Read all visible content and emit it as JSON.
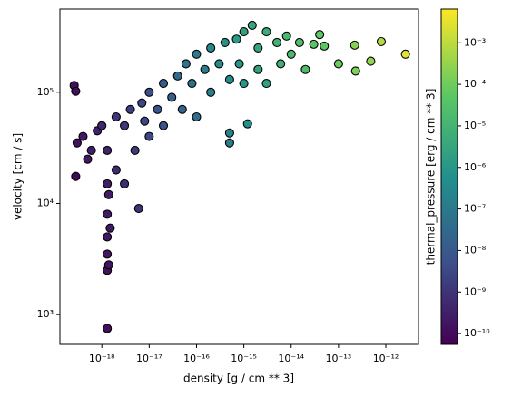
{
  "chart_data": {
    "type": "scatter",
    "xlabel": "density [g / cm ** 3]",
    "ylabel": "velocity [cm / s]",
    "xscale": "log",
    "yscale": "log",
    "xlim": [
      1.3e-19,
      4.9e-12
    ],
    "ylim": [
      540,
      560000.0
    ],
    "xticks": [
      {
        "value": 1e-18,
        "label": "10⁻¹⁸"
      },
      {
        "value": 1e-17,
        "label": "10⁻¹⁷"
      },
      {
        "value": 1e-16,
        "label": "10⁻¹⁶"
      },
      {
        "value": 1e-15,
        "label": "10⁻¹⁵"
      },
      {
        "value": 1e-14,
        "label": "10⁻¹⁴"
      },
      {
        "value": 1e-13,
        "label": "10⁻¹³"
      },
      {
        "value": 1e-12,
        "label": "10⁻¹²"
      }
    ],
    "yticks": [
      {
        "value": 1000,
        "label": "10³"
      },
      {
        "value": 10000,
        "label": "10⁴"
      },
      {
        "value": 100000,
        "label": "10⁵"
      }
    ],
    "marker_edge_color": "#000000",
    "x": [
      2.6e-19,
      2.8e-19,
      2.8e-19,
      3e-19,
      4e-19,
      5e-19,
      6e-19,
      8e-19,
      1e-18,
      1.3e-18,
      1.3e-18,
      1.3e-18,
      1.3e-18,
      1.3e-18,
      1.3e-18,
      1.3e-18,
      1.4e-18,
      1.4e-18,
      1.5e-18,
      2e-18,
      2e-18,
      3e-18,
      3e-18,
      4e-18,
      5e-18,
      6e-18,
      7e-18,
      8e-18,
      1e-17,
      1e-17,
      1.5e-17,
      2e-17,
      2e-17,
      3e-17,
      4e-17,
      5e-17,
      6e-17,
      8e-17,
      1e-16,
      1e-16,
      1.5e-16,
      2e-16,
      2e-16,
      3e-16,
      4e-16,
      5e-16,
      5e-16,
      5e-16,
      7e-16,
      8e-16,
      1e-15,
      1e-15,
      1.2e-15,
      1.5e-15,
      2e-15,
      2e-15,
      3e-15,
      3e-15,
      5e-15,
      6e-15,
      8e-15,
      1e-14,
      1.5e-14,
      2e-14,
      3e-14,
      4e-14,
      5e-14,
      1e-13,
      2.2e-13,
      2.3e-13,
      4.8e-13,
      8e-13,
      2.6e-12
    ],
    "y": [
      115000,
      102000,
      17500,
      35000,
      40000,
      25000,
      30000,
      45000,
      50000,
      30000,
      15000,
      8000,
      5000,
      3500,
      2500,
      750,
      2800,
      12000,
      6000,
      60000,
      20000,
      50000,
      15000,
      70000,
      30000,
      9000,
      80000,
      55000,
      100000,
      40000,
      70000,
      120000,
      50000,
      90000,
      140000,
      70000,
      180000,
      120000,
      220000,
      60000,
      160000,
      250000,
      100000,
      180000,
      280000,
      130000,
      35000,
      43000,
      300000,
      180000,
      350000,
      120000,
      52000,
      400000,
      250000,
      160000,
      350000,
      120000,
      280000,
      180000,
      320000,
      220000,
      280000,
      160000,
      270000,
      330000,
      260000,
      180000,
      265000,
      155000,
      190000,
      285000,
      220000
    ],
    "c": [
      1.2e-10,
      1.2e-10,
      1e-10,
      1.5e-10,
      2e-10,
      2e-10,
      3e-10,
      4e-10,
      5e-10,
      4e-10,
      3e-10,
      2.5e-10,
      2e-10,
      1.8e-10,
      1.5e-10,
      1.2e-10,
      1.6e-10,
      3e-10,
      2.2e-10,
      1e-09,
      6e-10,
      1.2e-09,
      7e-10,
      1.8e-09,
      1.5e-09,
      1e-09,
      3e-09,
      3e-09,
      5e-09,
      3e-09,
      6e-09,
      1e-08,
      6e-09,
      1.5e-08,
      3e-08,
      2e-08,
      6e-08,
      5e-08,
      1.2e-07,
      4e-08,
      1.5e-07,
      3e-07,
      1.5e-07,
      4e-07,
      7e-07,
      4e-07,
      1.5e-07,
      2e-07,
      1.2e-06,
      8e-07,
      2e-06,
      1e-06,
      6e-07,
      3e-06,
      3e-06,
      2e-06,
      5e-06,
      2e-06,
      8e-06,
      6e-06,
      1.5e-05,
      1.5e-05,
      2e-05,
      2e-05,
      4e-05,
      6e-05,
      5e-05,
      8e-05,
      0.0002,
      0.00015,
      0.0003,
      0.0008,
      0.003
    ],
    "colorbar": {
      "label": "thermal_pressure [erg / cm ** 3]",
      "colormap": "viridis",
      "scale": "log",
      "lim": [
        5.5e-11,
        0.0065
      ],
      "ticks": [
        {
          "value": 1e-10,
          "label": "10⁻¹⁰"
        },
        {
          "value": 1e-09,
          "label": "10⁻⁹"
        },
        {
          "value": 1e-08,
          "label": "10⁻⁸"
        },
        {
          "value": 1e-07,
          "label": "10⁻⁷"
        },
        {
          "value": 1e-06,
          "label": "10⁻⁶"
        },
        {
          "value": 1e-05,
          "label": "10⁻⁵"
        },
        {
          "value": 0.0001,
          "label": "10⁻⁴"
        },
        {
          "value": 0.001,
          "label": "10⁻³"
        }
      ]
    }
  }
}
